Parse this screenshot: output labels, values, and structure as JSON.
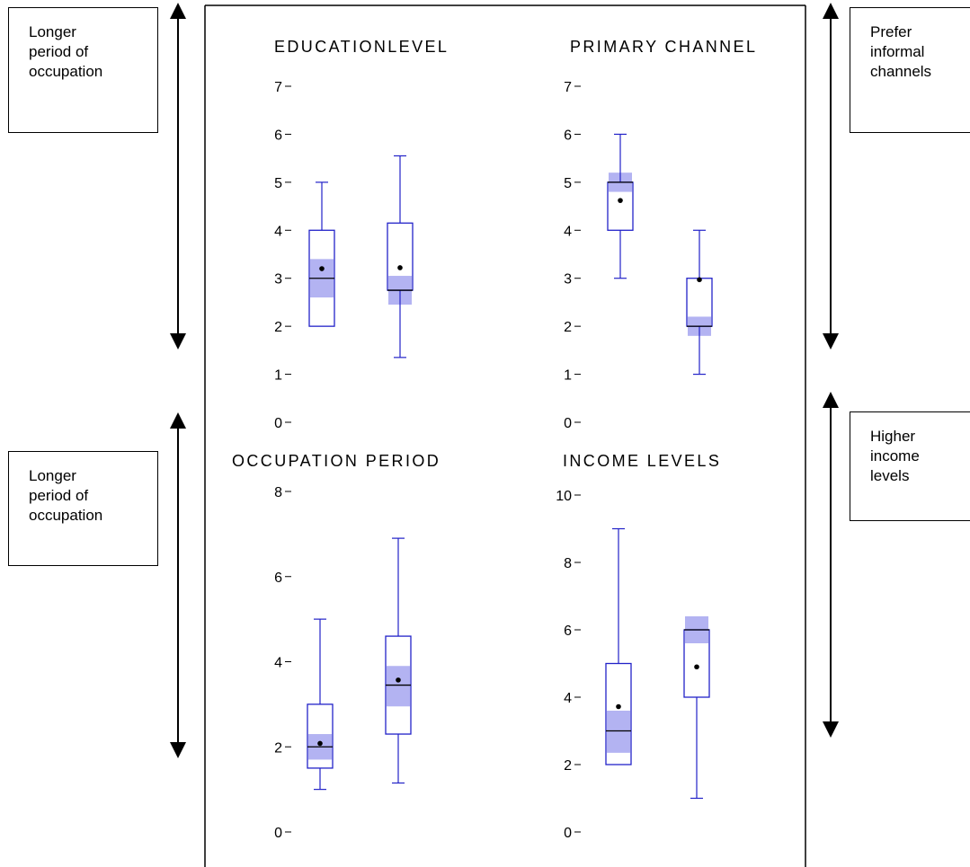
{
  "notes": [
    {
      "text": "Longer\nperiod of\noccupation"
    },
    {
      "text": "Prefer\ninformal\nchannels"
    },
    {
      "text": "Longer\nperiod of\noccupation"
    },
    {
      "text": "Higher\nincome\nlevels"
    }
  ],
  "chart_data": [
    {
      "type": "box",
      "title": "EDUCATIONLEVEL",
      "ylim": [
        0,
        7
      ],
      "yticks": [
        "0",
        "1",
        "2",
        "3",
        "4",
        "5",
        "6",
        "7"
      ],
      "boxes": [
        {
          "min": 2,
          "q1": 2,
          "median": 3,
          "q3": 4,
          "max": 5,
          "mean": 3.2,
          "ci": [
            2.6,
            3.4
          ]
        },
        {
          "min": 1.35,
          "q1": 2.75,
          "median": 2.75,
          "q3": 4.15,
          "max": 5.55,
          "mean": 3.22,
          "ci": [
            2.45,
            3.05
          ]
        }
      ]
    },
    {
      "type": "box",
      "title": "PRIMARY CHANNEL",
      "ylim": [
        0,
        7
      ],
      "yticks": [
        "0",
        "1",
        "2",
        "3",
        "4",
        "5",
        "6",
        "7"
      ],
      "boxes": [
        {
          "min": 3,
          "q1": 4,
          "median": 5,
          "q3": 5,
          "max": 6,
          "mean": 4.62,
          "ci": [
            4.8,
            5.2
          ]
        },
        {
          "min": 1,
          "q1": 2,
          "median": 2,
          "q3": 3,
          "max": 4,
          "mean": 2.97,
          "ci": [
            1.8,
            2.2
          ]
        }
      ]
    },
    {
      "type": "box",
      "title": "OCCUPATION PERIOD",
      "ylim": [
        0,
        8
      ],
      "yticks": [
        "0",
        "2",
        "4",
        "6",
        "8"
      ],
      "boxes": [
        {
          "min": 1,
          "q1": 1.5,
          "median": 2,
          "q3": 3,
          "max": 5,
          "mean": 2.08,
          "ci": [
            1.7,
            2.3
          ]
        },
        {
          "min": 1.15,
          "q1": 2.3,
          "median": 3.45,
          "q3": 4.6,
          "max": 6.9,
          "mean": 3.57,
          "ci": [
            2.95,
            3.9
          ]
        }
      ]
    },
    {
      "type": "box",
      "title": "INCOME LEVELS",
      "ylim": [
        0,
        10
      ],
      "yticks": [
        "0",
        "2",
        "4",
        "6",
        "8",
        "10"
      ],
      "boxes": [
        {
          "min": 2,
          "q1": 2,
          "median": 3,
          "q3": 5,
          "max": 9,
          "mean": 3.72,
          "ci": [
            2.35,
            3.6
          ]
        },
        {
          "min": 1,
          "q1": 4,
          "median": 6,
          "q3": 6,
          "max": 6,
          "mean": 4.9,
          "ci": [
            5.6,
            6.4
          ]
        }
      ]
    }
  ],
  "colors": {
    "box": "#2222c8",
    "ci_band": "#b3b3f2",
    "median": "#000000",
    "mean_dot": "#000000",
    "frame": "#000000"
  }
}
